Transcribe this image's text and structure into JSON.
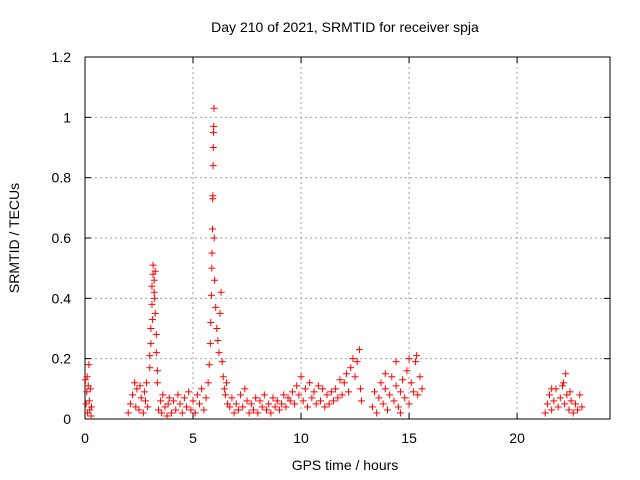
{
  "chart_data": {
    "type": "scatter",
    "title": "Day 210 of 2021, SRMTID for receiver spja",
    "xlabel": "GPS time / hours",
    "ylabel": "SRMTID / TECUs",
    "xlim": [
      0,
      24.3
    ],
    "ylim": [
      0,
      1.2
    ],
    "xticks": [
      0,
      5,
      10,
      15,
      20
    ],
    "xtick_labels": [
      "0",
      "5",
      "10",
      "15",
      "20"
    ],
    "yticks": [
      0,
      0.2,
      0.4,
      0.6,
      0.8,
      1,
      1.2
    ],
    "ytick_labels": [
      "0",
      "0.2",
      "0.4",
      "0.6",
      "0.8",
      "1",
      "1.2"
    ],
    "grid": true,
    "marker": "+",
    "color": "#ff0000",
    "series": [
      {
        "name": "spja",
        "points": [
          [
            0.02,
            0.13
          ],
          [
            0.05,
            0.05
          ],
          [
            0.08,
            0.09
          ],
          [
            0.1,
            0.14
          ],
          [
            0.12,
            0.02
          ],
          [
            0.15,
            0.11
          ],
          [
            0.18,
            0.18
          ],
          [
            0.2,
            0.06
          ],
          [
            0.22,
            0.03
          ],
          [
            0.25,
            0.1
          ],
          [
            0.28,
            0.01
          ],
          [
            0.3,
            0.04
          ],
          [
            2.0,
            0.02
          ],
          [
            2.1,
            0.05
          ],
          [
            2.2,
            0.08
          ],
          [
            2.3,
            0.12
          ],
          [
            2.35,
            0.04
          ],
          [
            2.4,
            0.1
          ],
          [
            2.5,
            0.03
          ],
          [
            2.55,
            0.11
          ],
          [
            2.6,
            0.07
          ],
          [
            2.7,
            0.02
          ],
          [
            2.75,
            0.09
          ],
          [
            2.8,
            0.06
          ],
          [
            2.85,
            0.12
          ],
          [
            2.9,
            0.04
          ],
          [
            3.0,
            0.17
          ],
          [
            3.0,
            0.21
          ],
          [
            3.05,
            0.3
          ],
          [
            3.1,
            0.38
          ],
          [
            3.1,
            0.44
          ],
          [
            3.15,
            0.48
          ],
          [
            3.15,
            0.51
          ],
          [
            3.2,
            0.46
          ],
          [
            3.2,
            0.42
          ],
          [
            3.25,
            0.49
          ],
          [
            3.25,
            0.35
          ],
          [
            3.3,
            0.28
          ],
          [
            3.3,
            0.22
          ],
          [
            3.35,
            0.16
          ],
          [
            3.35,
            0.12
          ],
          [
            3.05,
            0.25
          ],
          [
            3.12,
            0.33
          ],
          [
            3.22,
            0.4
          ],
          [
            3.4,
            0.03
          ],
          [
            3.5,
            0.06
          ],
          [
            3.55,
            0.02
          ],
          [
            3.6,
            0.08
          ],
          [
            3.7,
            0.04
          ],
          [
            3.8,
            0.01
          ],
          [
            3.85,
            0.05
          ],
          [
            3.9,
            0.07
          ],
          [
            4.0,
            0.02
          ],
          [
            4.1,
            0.06
          ],
          [
            4.2,
            0.03
          ],
          [
            4.3,
            0.08
          ],
          [
            4.4,
            0.05
          ],
          [
            4.5,
            0.02
          ],
          [
            4.6,
            0.07
          ],
          [
            4.7,
            0.04
          ],
          [
            4.8,
            0.09
          ],
          [
            4.9,
            0.03
          ],
          [
            5.0,
            0.06
          ],
          [
            5.1,
            0.02
          ],
          [
            5.2,
            0.08
          ],
          [
            5.3,
            0.05
          ],
          [
            5.4,
            0.1
          ],
          [
            5.5,
            0.03
          ],
          [
            5.6,
            0.07
          ],
          [
            5.7,
            0.12
          ],
          [
            5.75,
            0.18
          ],
          [
            5.8,
            0.25
          ],
          [
            5.82,
            0.32
          ],
          [
            5.85,
            0.41
          ],
          [
            5.87,
            0.5
          ],
          [
            5.88,
            0.55
          ],
          [
            5.9,
            0.63
          ],
          [
            5.91,
            0.73
          ],
          [
            5.92,
            0.74
          ],
          [
            5.93,
            0.84
          ],
          [
            5.94,
            0.9
          ],
          [
            5.95,
            0.95
          ],
          [
            5.96,
            0.97
          ],
          [
            5.97,
            1.03
          ],
          [
            5.98,
            0.6
          ],
          [
            6.0,
            0.46
          ],
          [
            6.05,
            0.37
          ],
          [
            6.1,
            0.3
          ],
          [
            6.15,
            0.26
          ],
          [
            6.2,
            0.22
          ],
          [
            6.25,
            0.35
          ],
          [
            6.3,
            0.42
          ],
          [
            6.35,
            0.19
          ],
          [
            6.4,
            0.14
          ],
          [
            6.45,
            0.1
          ],
          [
            6.5,
            0.08
          ],
          [
            6.55,
            0.12
          ],
          [
            6.6,
            0.05
          ],
          [
            6.7,
            0.04
          ],
          [
            6.8,
            0.07
          ],
          [
            6.9,
            0.02
          ],
          [
            7.0,
            0.05
          ],
          [
            7.1,
            0.03
          ],
          [
            7.2,
            0.08
          ],
          [
            7.3,
            0.04
          ],
          [
            7.4,
            0.1
          ],
          [
            7.5,
            0.06
          ],
          [
            7.6,
            0.02
          ],
          [
            7.7,
            0.05
          ],
          [
            7.8,
            0.03
          ],
          [
            7.9,
            0.07
          ],
          [
            8.0,
            0.02
          ],
          [
            8.1,
            0.06
          ],
          [
            8.2,
            0.04
          ],
          [
            8.3,
            0.08
          ],
          [
            8.4,
            0.03
          ],
          [
            8.5,
            0.05
          ],
          [
            8.6,
            0.02
          ],
          [
            8.7,
            0.07
          ],
          [
            8.8,
            0.04
          ],
          [
            8.9,
            0.06
          ],
          [
            9.0,
            0.03
          ],
          [
            9.1,
            0.05
          ],
          [
            9.2,
            0.08
          ],
          [
            9.3,
            0.04
          ],
          [
            9.4,
            0.07
          ],
          [
            9.5,
            0.06
          ],
          [
            9.6,
            0.09
          ],
          [
            9.7,
            0.05
          ],
          [
            9.8,
            0.11
          ],
          [
            9.9,
            0.08
          ],
          [
            10.0,
            0.14
          ],
          [
            10.1,
            0.06
          ],
          [
            10.2,
            0.1
          ],
          [
            10.3,
            0.04
          ],
          [
            10.4,
            0.12
          ],
          [
            10.5,
            0.07
          ],
          [
            10.6,
            0.09
          ],
          [
            10.7,
            0.05
          ],
          [
            10.8,
            0.11
          ],
          [
            10.9,
            0.06
          ],
          [
            11.0,
            0.1
          ],
          [
            11.1,
            0.04
          ],
          [
            11.2,
            0.08
          ],
          [
            11.3,
            0.05
          ],
          [
            11.4,
            0.09
          ],
          [
            11.5,
            0.06
          ],
          [
            11.6,
            0.1
          ],
          [
            11.7,
            0.07
          ],
          [
            11.8,
            0.13
          ],
          [
            11.9,
            0.08
          ],
          [
            12.0,
            0.12
          ],
          [
            12.1,
            0.15
          ],
          [
            12.2,
            0.09
          ],
          [
            12.3,
            0.17
          ],
          [
            12.4,
            0.2
          ],
          [
            12.5,
            0.14
          ],
          [
            12.6,
            0.19
          ],
          [
            12.7,
            0.23
          ],
          [
            12.75,
            0.1
          ],
          [
            12.8,
            0.06
          ],
          [
            13.3,
            0.04
          ],
          [
            13.4,
            0.09
          ],
          [
            13.5,
            0.02
          ],
          [
            13.6,
            0.07
          ],
          [
            13.7,
            0.12
          ],
          [
            13.8,
            0.05
          ],
          [
            13.9,
            0.1
          ],
          [
            14.0,
            0.03
          ],
          [
            14.1,
            0.08
          ],
          [
            14.2,
            0.14
          ],
          [
            14.3,
            0.06
          ],
          [
            14.4,
            0.11
          ],
          [
            14.5,
            0.04
          ],
          [
            14.6,
            0.09
          ],
          [
            14.7,
            0.13
          ],
          [
            14.8,
            0.07
          ],
          [
            14.9,
            0.16
          ],
          [
            15.0,
            0.05
          ],
          [
            15.1,
            0.12
          ],
          [
            15.2,
            0.09
          ],
          [
            15.3,
            0.19
          ],
          [
            15.35,
            0.21
          ],
          [
            15.4,
            0.08
          ],
          [
            15.5,
            0.14
          ],
          [
            15.6,
            0.1
          ],
          [
            14.4,
            0.19
          ],
          [
            13.9,
            0.15
          ],
          [
            14.6,
            0.02
          ],
          [
            15.0,
            0.2
          ],
          [
            21.3,
            0.02
          ],
          [
            21.4,
            0.05
          ],
          [
            21.5,
            0.08
          ],
          [
            21.6,
            0.03
          ],
          [
            21.7,
            0.06
          ],
          [
            21.8,
            0.1
          ],
          [
            21.9,
            0.04
          ],
          [
            22.0,
            0.07
          ],
          [
            22.1,
            0.11
          ],
          [
            22.2,
            0.05
          ],
          [
            22.25,
            0.15
          ],
          [
            22.3,
            0.08
          ],
          [
            22.4,
            0.03
          ],
          [
            22.5,
            0.06
          ],
          [
            22.6,
            0.02
          ],
          [
            22.7,
            0.05
          ],
          [
            22.8,
            0.03
          ],
          [
            22.9,
            0.08
          ],
          [
            23.0,
            0.04
          ],
          [
            22.15,
            0.12
          ],
          [
            21.6,
            0.1
          ],
          [
            22.45,
            0.09
          ]
        ]
      }
    ]
  }
}
